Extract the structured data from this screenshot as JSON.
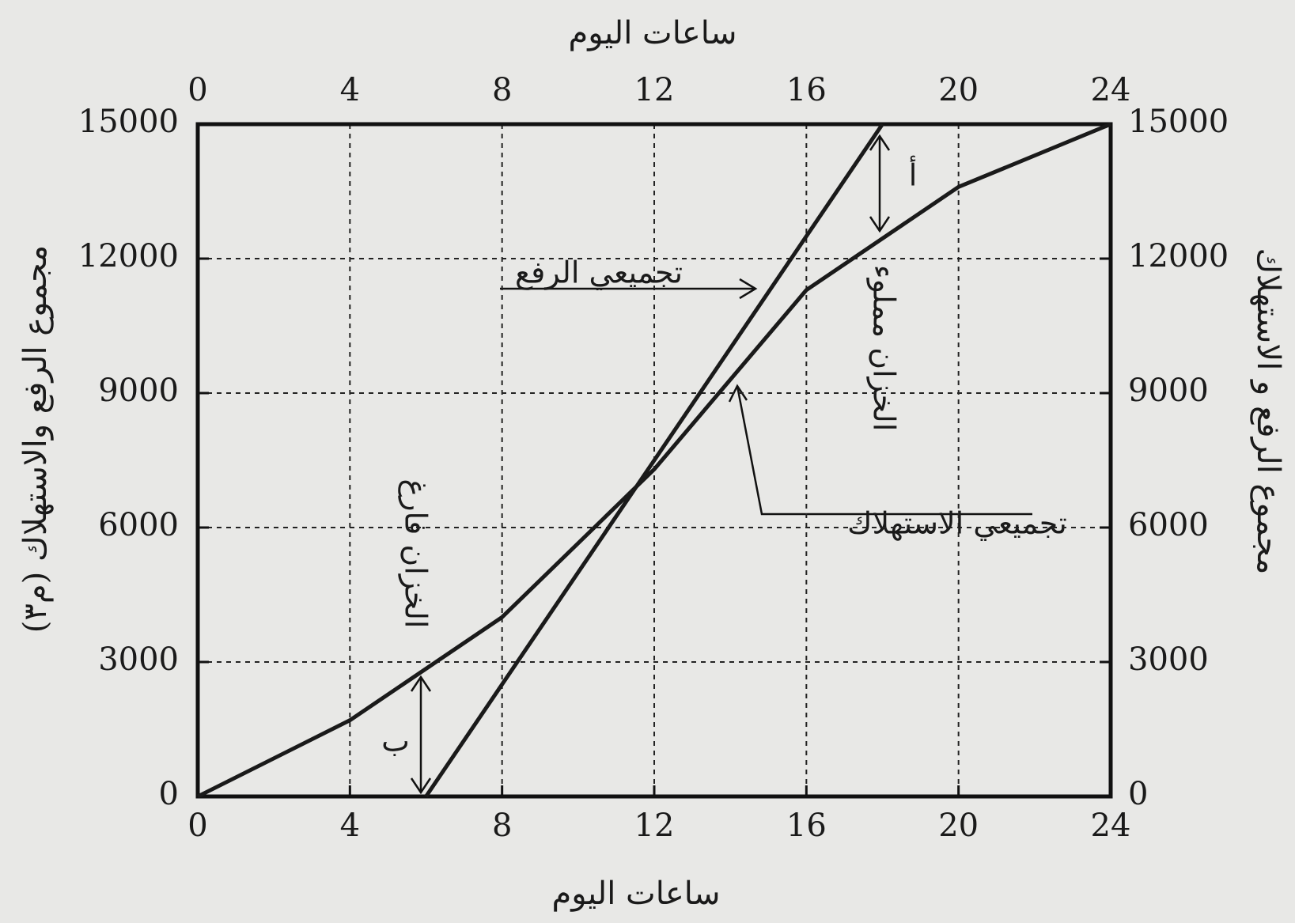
{
  "chart_data": {
    "type": "line",
    "x_label": "ساعات اليوم",
    "x2_label": "ساعات اليوم",
    "y_label": "مجموع الرفع والاستهلاك (م٣)",
    "y2_label": "مجموع الرفع و الاستهلاك",
    "xlim": [
      0,
      24
    ],
    "xticks": [
      0,
      4,
      8,
      12,
      16,
      20,
      24
    ],
    "ylim": [
      0,
      15000
    ],
    "yticks": [
      0,
      3000,
      6000,
      9000,
      12000,
      15000
    ],
    "y2lim": [
      0,
      15000
    ],
    "y2ticks": [
      0,
      3000,
      6000,
      9000,
      12000,
      15000
    ],
    "grid": true,
    "series": [
      {
        "name": "تجميعي الاستهلاك",
        "color": "#1a1a1a",
        "x": [
          0,
          4,
          8,
          12,
          16,
          20,
          24
        ],
        "values": [
          0,
          1700,
          4000,
          7300,
          11300,
          13600,
          15000
        ]
      },
      {
        "name": "تجميعي الرفع",
        "color": "#1a1a1a",
        "x": [
          6,
          18
        ],
        "values": [
          0,
          15000
        ]
      }
    ],
    "annotations": {
      "full": "الخزان مملوء",
      "empty": "الخزان فارغ",
      "a": "أ",
      "b": "ب"
    }
  }
}
